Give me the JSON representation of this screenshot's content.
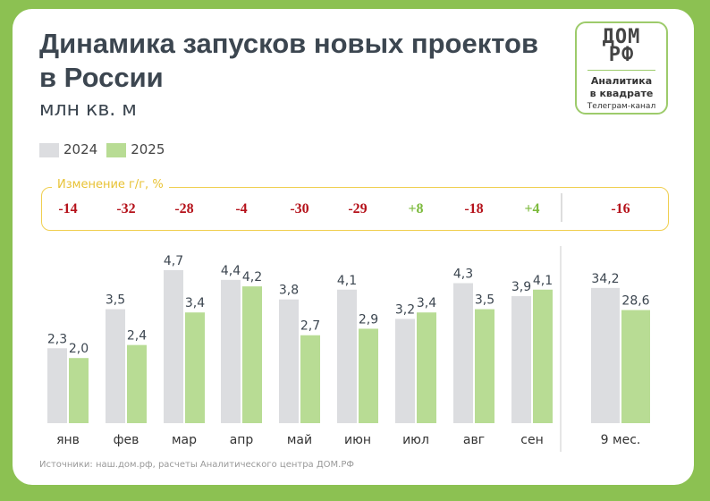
{
  "title": "Динамика запусков новых проектов в России",
  "subtitle": "млн кв. м",
  "logo": {
    "mark": "ДОМ РФ",
    "line1": "Аналитика",
    "line2": "в квадрате",
    "line3": "Телеграм-канал"
  },
  "colors": {
    "2024": "#dcdde0",
    "2025": "#b8dc94",
    "negative": "#b5121b",
    "positive": "#7cba3c",
    "box": "#f0cf50"
  },
  "change_label": "Изменение г/г, %",
  "changes": [
    "-14",
    "-32",
    "-28",
    "-4",
    "-30",
    "-29",
    "+8",
    "-18",
    "+4",
    "-16"
  ],
  "source": "Источники: наш.дом.рф, расчеты Аналитического центра ДОМ.РФ",
  "chart_data": {
    "type": "bar",
    "categories": [
      "янв",
      "фев",
      "мар",
      "апр",
      "май",
      "июн",
      "июл",
      "авг",
      "сен",
      "9 мес."
    ],
    "series": [
      {
        "name": "2024",
        "values": [
          2.3,
          3.5,
          4.7,
          4.4,
          3.8,
          4.1,
          3.2,
          4.3,
          3.9,
          34.2
        ]
      },
      {
        "name": "2025",
        "values": [
          2.0,
          2.4,
          3.4,
          4.2,
          2.7,
          2.9,
          3.4,
          3.5,
          4.1,
          28.6
        ]
      }
    ],
    "labels": {
      "2024": [
        "2,3",
        "3,5",
        "4,7",
        "4,4",
        "3,8",
        "4,1",
        "3,2",
        "4,3",
        "3,9",
        "34,2"
      ],
      "2025": [
        "2,0",
        "2,4",
        "3,4",
        "4,2",
        "2,7",
        "2,9",
        "3,4",
        "3,5",
        "4,1",
        "28,6"
      ]
    },
    "note": "",
    "legend": "top-left"
  }
}
